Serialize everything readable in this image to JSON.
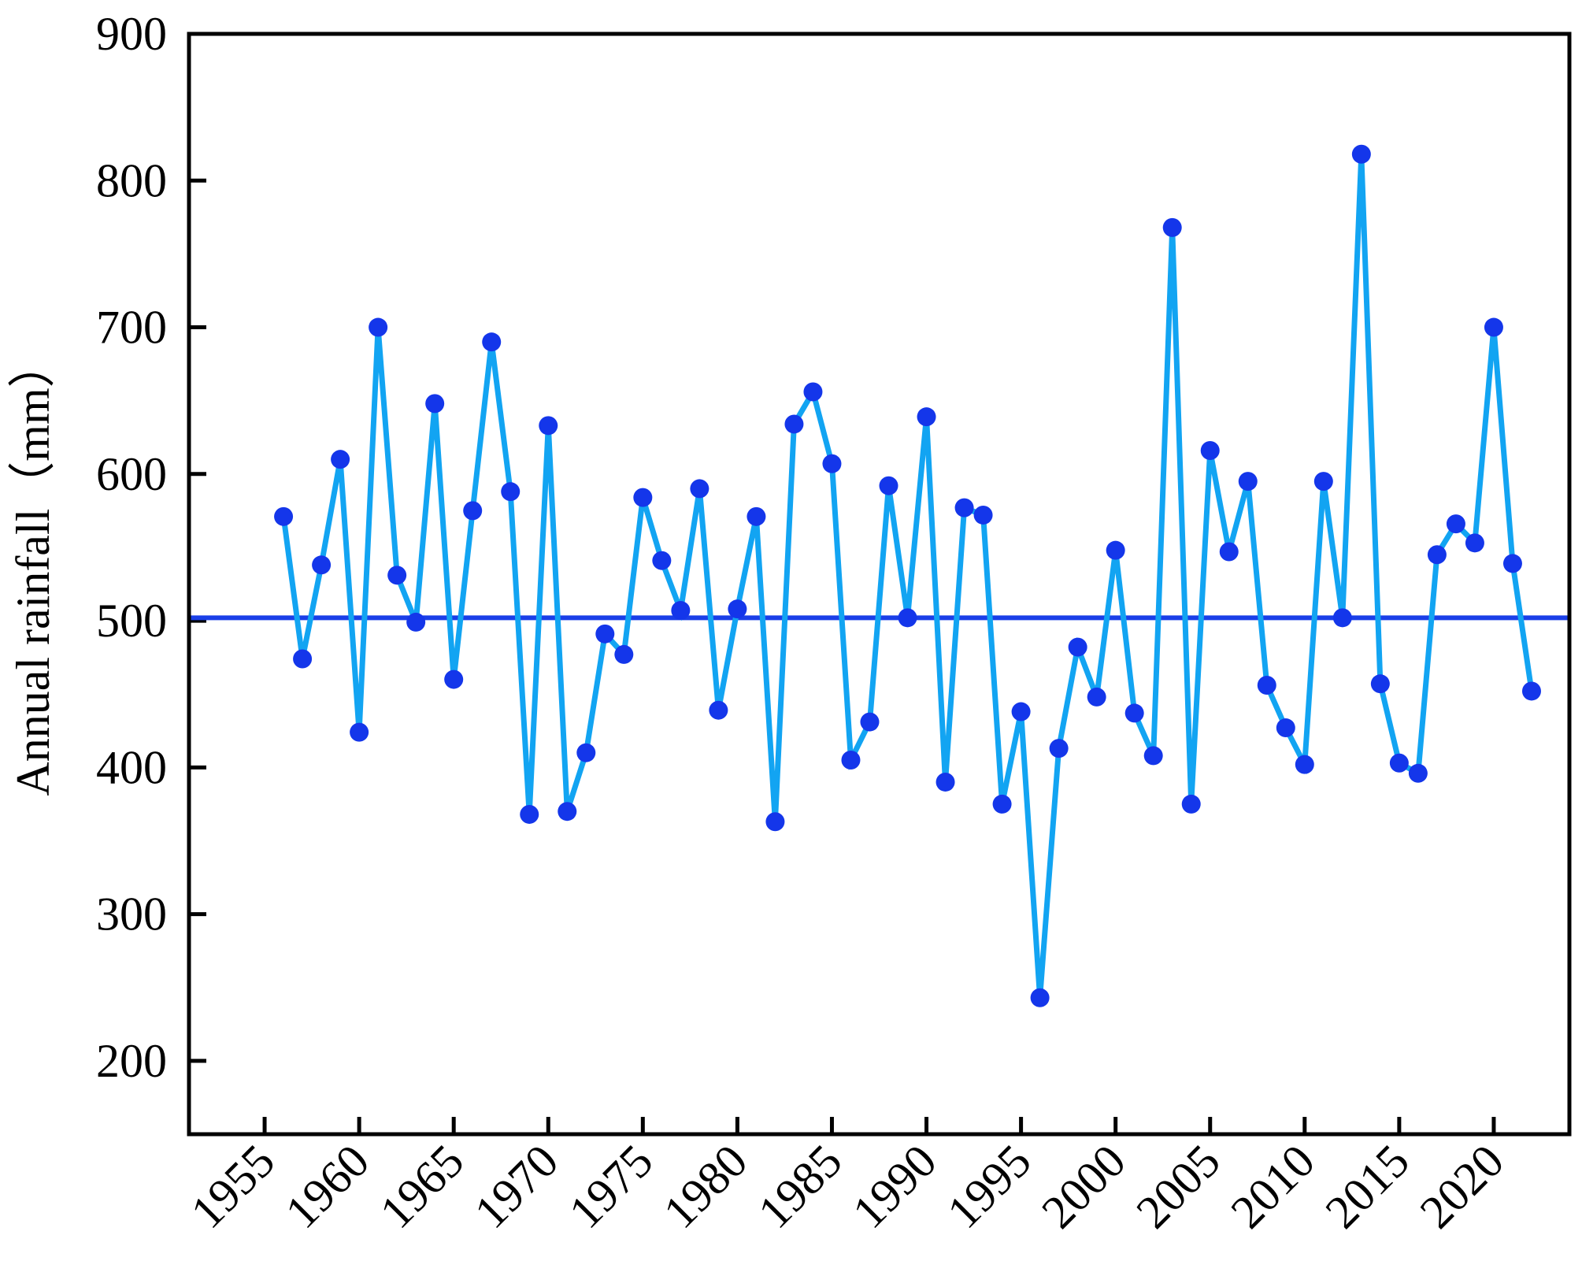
{
  "chart_data": {
    "type": "line",
    "ylabel": "Annual rainfall（mm）",
    "xlabel": "",
    "title": "",
    "xlim": [
      1951,
      2024
    ],
    "ylim": [
      150,
      900
    ],
    "yticks": [
      200,
      300,
      400,
      500,
      600,
      700,
      800,
      900
    ],
    "xticks": [
      1955,
      1960,
      1965,
      1970,
      1975,
      1980,
      1985,
      1990,
      1995,
      2000,
      2005,
      2010,
      2015,
      2020
    ],
    "reference_line": {
      "value": 502,
      "color": "#1a3fe8"
    },
    "line_color": "#12a4f2",
    "marker_color": "#1436ea",
    "grid": false,
    "series": [
      {
        "x": [
          1956,
          1957,
          1958,
          1959,
          1960,
          1961,
          1962,
          1963,
          1964,
          1965,
          1966,
          1967,
          1968,
          1969,
          1970,
          1971,
          1972,
          1973,
          1974,
          1975,
          1976,
          1977,
          1978,
          1979,
          1980,
          1981,
          1982,
          1983,
          1984,
          1985,
          1986,
          1987,
          1988,
          1989,
          1990,
          1991,
          1992,
          1993,
          1994,
          1995,
          1996,
          1997,
          1998,
          1999,
          2000,
          2001,
          2002,
          2003,
          2004,
          2005,
          2006,
          2007,
          2008,
          2009,
          2010,
          2011,
          2012,
          2013,
          2014,
          2015,
          2016,
          2017,
          2018,
          2019,
          2020,
          2021,
          2022
        ],
        "values": [
          571,
          474,
          538,
          610,
          424,
          700,
          531,
          499,
          648,
          460,
          575,
          690,
          588,
          368,
          633,
          370,
          410,
          491,
          477,
          584,
          541,
          507,
          590,
          439,
          508,
          571,
          363,
          634,
          656,
          607,
          405,
          431,
          592,
          502,
          639,
          390,
          577,
          572,
          375,
          438,
          243,
          413,
          482,
          448,
          548,
          437,
          408,
          768,
          375,
          616,
          547,
          595,
          456,
          427,
          402,
          595,
          502,
          818,
          457,
          403,
          396,
          545,
          566,
          553,
          700,
          539,
          452
        ]
      }
    ]
  }
}
